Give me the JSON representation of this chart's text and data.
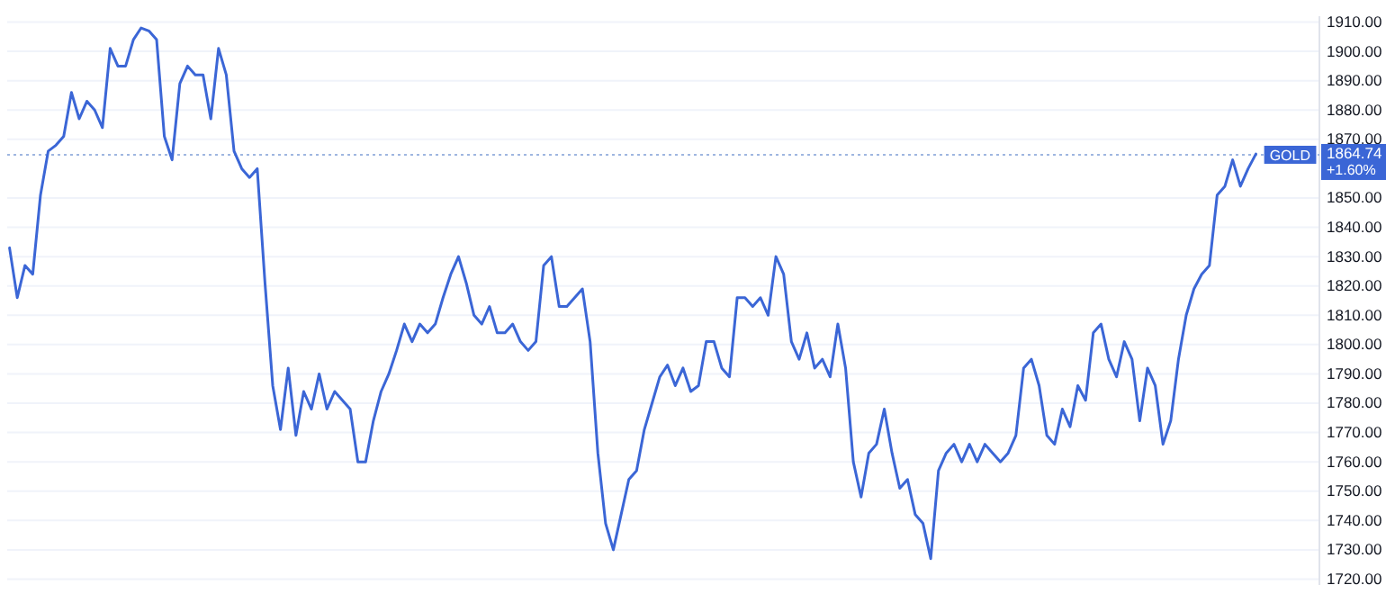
{
  "chart_data": {
    "type": "line",
    "categories": [
      null,
      null,
      null,
      null,
      null,
      null,
      null,
      null,
      null,
      null,
      null,
      null,
      null,
      null,
      null,
      null,
      null,
      null,
      null,
      null,
      null,
      null,
      null,
      null,
      null,
      null,
      null,
      null,
      null,
      null,
      null,
      null,
      null,
      null,
      null,
      null,
      null,
      null,
      null,
      null,
      null,
      null,
      null,
      null,
      null,
      null,
      null,
      null,
      null,
      null,
      null,
      null,
      null,
      null,
      null,
      null,
      null,
      null,
      null,
      null,
      null,
      null,
      null,
      null,
      null,
      null,
      null,
      null,
      null,
      null,
      null,
      null,
      null,
      null,
      null,
      null,
      null,
      null,
      null,
      null,
      null,
      null,
      null,
      null,
      null,
      null,
      null,
      null,
      null,
      null,
      null,
      null,
      null,
      null,
      null,
      null,
      null,
      null,
      null,
      null,
      null,
      null,
      null,
      null,
      null,
      null,
      null,
      null,
      null,
      null,
      null,
      null,
      null,
      null,
      null,
      null,
      null,
      null,
      null,
      null,
      null,
      null,
      null,
      null,
      null,
      null,
      null,
      null,
      null,
      null,
      null,
      null,
      null,
      null,
      null,
      null,
      null,
      null,
      null,
      null,
      null,
      null,
      null,
      null,
      null,
      null,
      null,
      null,
      null,
      null,
      null,
      null,
      null,
      null,
      null,
      null,
      null,
      null,
      null,
      null,
      null,
      null
    ],
    "series": [
      {
        "color": "#3b66d6",
        "values": [
          1833,
          1816,
          1827,
          1824,
          1851,
          1866,
          1868,
          1871,
          1886,
          1877,
          1883,
          1880,
          1874,
          1901,
          1895,
          1895,
          1904,
          1908,
          1907,
          1904,
          1871,
          1863,
          1889,
          1895,
          1892,
          1892,
          1877,
          1901,
          1892,
          1866,
          1860,
          1857,
          1860,
          1821,
          1786,
          1771,
          1792,
          1769,
          1784,
          1778,
          1790,
          1778,
          1784,
          1781,
          1778,
          1760,
          1760,
          1774,
          1784,
          1790,
          1798,
          1807,
          1801,
          1807,
          1804,
          1807,
          1816,
          1824,
          1830,
          1821,
          1810,
          1807,
          1813,
          1804,
          1804,
          1807,
          1801,
          1798,
          1801,
          1827,
          1830,
          1813,
          1813,
          1816,
          1819,
          1801,
          1763,
          1739,
          1730,
          1742,
          1754,
          1757,
          1771,
          1780,
          1789,
          1793,
          1786,
          1792,
          1784,
          1786,
          1801,
          1801,
          1792,
          1789,
          1816,
          1816,
          1813,
          1816,
          1810,
          1830,
          1824,
          1801,
          1795,
          1804,
          1792,
          1795,
          1789,
          1807,
          1792,
          1760,
          1748,
          1763,
          1766,
          1778,
          1763,
          1751,
          1754,
          1742,
          1739,
          1727,
          1757,
          1763,
          1766,
          1760,
          1766,
          1760,
          1766,
          1763,
          1760,
          1763,
          1769,
          1792,
          1795,
          1786,
          1769,
          1766,
          1778,
          1772,
          1786,
          1781,
          1804,
          1807,
          1795,
          1789,
          1801,
          1795,
          1774,
          1792,
          1786,
          1766,
          1774,
          1795,
          1810,
          1819,
          1824,
          1827,
          1851,
          1854,
          1863,
          1854,
          1860,
          1865
        ]
      }
    ],
    "ylim": [
      1718,
      1912
    ],
    "yticks": [
      {
        "value": 1720,
        "label": "1720.00"
      },
      {
        "value": 1730,
        "label": "1730.00"
      },
      {
        "value": 1740,
        "label": "1740.00"
      },
      {
        "value": 1750,
        "label": "1750.00"
      },
      {
        "value": 1760,
        "label": "1760.00"
      },
      {
        "value": 1770,
        "label": "1770.00"
      },
      {
        "value": 1780,
        "label": "1780.00"
      },
      {
        "value": 1790,
        "label": "1790.00"
      },
      {
        "value": 1800,
        "label": "1800.00"
      },
      {
        "value": 1810,
        "label": "1810.00"
      },
      {
        "value": 1820,
        "label": "1820.00"
      },
      {
        "value": 1830,
        "label": "1830.00"
      },
      {
        "value": 1840,
        "label": "1840.00"
      },
      {
        "value": 1850,
        "label": "1850.00"
      },
      {
        "value": 1870,
        "label": "1870.00"
      },
      {
        "value": 1880,
        "label": "1880.00"
      },
      {
        "value": 1890,
        "label": "1890.00"
      },
      {
        "value": 1900,
        "label": "1900.00"
      },
      {
        "value": 1910,
        "label": "1910.00"
      }
    ],
    "grid": "y",
    "tick_labels": "y",
    "ref_lines": [
      {
        "axis": "y",
        "value": 1864.74,
        "label": "1864.74",
        "line_style": "dotted",
        "color": "#9fb6e0"
      }
    ],
    "annotations": [
      "GOLD",
      "+1.60%"
    ]
  }
}
